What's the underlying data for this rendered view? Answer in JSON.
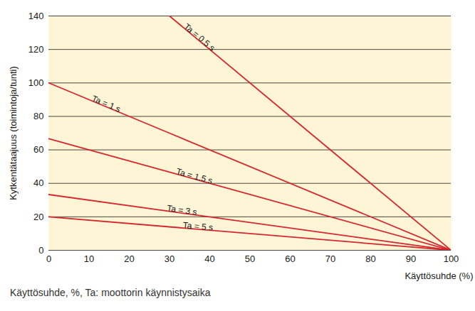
{
  "chart_data": {
    "type": "line",
    "x_label": "Käyttösuhde (%)",
    "y_label": "Kytkentätaajuus (toimintoja/tunti)",
    "caption": "Käyttösuhde, %, Ta: moottorin käynnistysaika",
    "x": [
      0,
      30,
      100
    ],
    "series": [
      {
        "name": "Ta = 0.5 s",
        "color": "#d7262e",
        "values": [
          null,
          140,
          0
        ]
      },
      {
        "name": "Ta = 1 s",
        "color": "#d7262e",
        "values": [
          100,
          70,
          0
        ]
      },
      {
        "name": "Ta = 1.5 s",
        "color": "#d7262e",
        "values": [
          66.7,
          46.7,
          0
        ]
      },
      {
        "name": "Ta = 3 s",
        "color": "#d7262e",
        "values": [
          33.3,
          23.3,
          0
        ]
      },
      {
        "name": "Ta = 5 s",
        "color": "#d7262e",
        "values": [
          20,
          14,
          0
        ]
      }
    ],
    "xlim": [
      0,
      100
    ],
    "ylim": [
      0,
      140
    ],
    "xticks": [
      0,
      10,
      20,
      30,
      40,
      50,
      60,
      70,
      80,
      90,
      100
    ],
    "yticks": [
      0,
      20,
      40,
      60,
      80,
      100,
      120,
      140
    ],
    "grid": true
  }
}
